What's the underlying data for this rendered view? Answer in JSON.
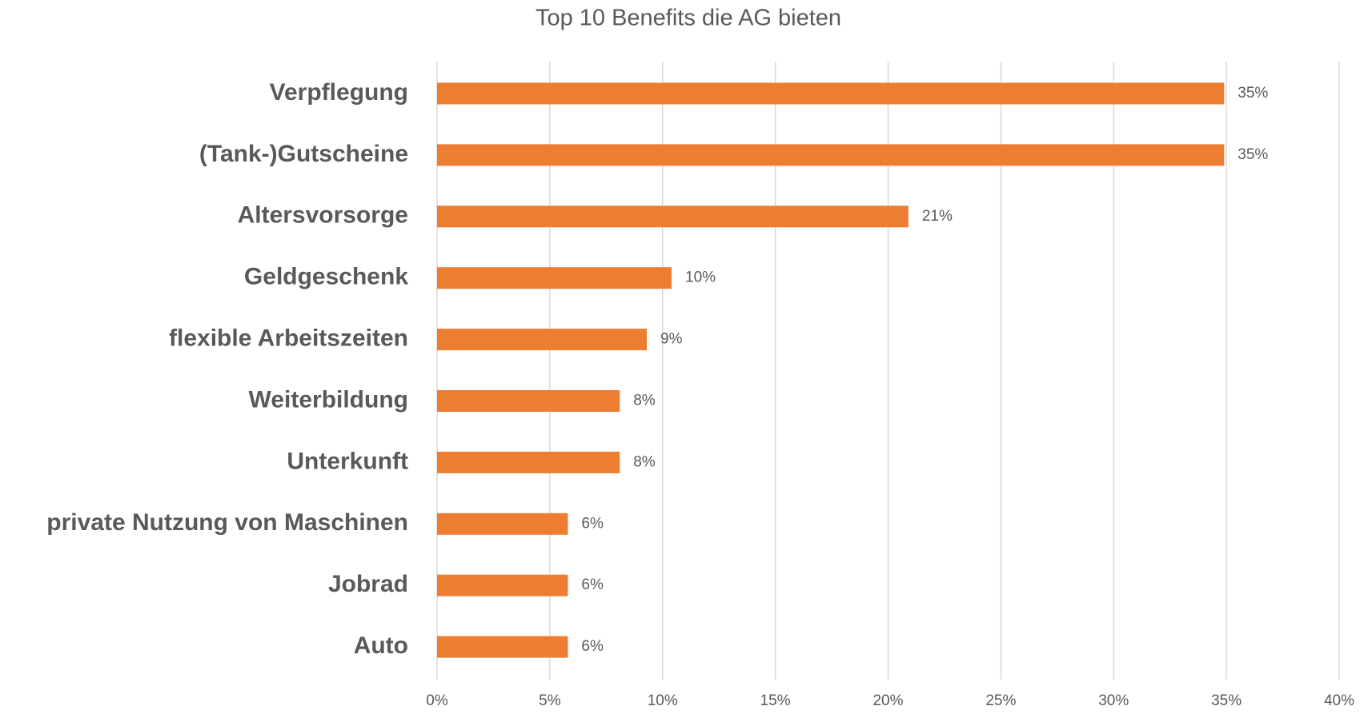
{
  "chart_data": {
    "type": "bar",
    "orientation": "horizontal",
    "title": "Top 10 Benefits die AG bieten",
    "categories": [
      "Verpflegung",
      "(Tank-)Gutscheine",
      "Altersvorsorge",
      "Geldgeschenk",
      "flexible Arbeitszeiten",
      "Weiterbildung",
      "Unterkunft",
      "private Nutzung von Maschinen",
      "Jobrad",
      "Auto"
    ],
    "values": [
      34.9,
      34.9,
      20.9,
      10.4,
      9.3,
      8.1,
      8.1,
      5.8,
      5.8,
      5.8
    ],
    "value_labels": [
      "35%",
      "35%",
      "21%",
      "10%",
      "9%",
      "8%",
      "8%",
      "6%",
      "6%",
      "6%"
    ],
    "color": "#ed7d31",
    "xlim": [
      0,
      40
    ],
    "xticks": [
      {
        "value": 0,
        "label": "0%"
      },
      {
        "value": 5,
        "label": "5%"
      },
      {
        "value": 10,
        "label": "10%"
      },
      {
        "value": 15,
        "label": "15%"
      },
      {
        "value": 20,
        "label": "20%"
      },
      {
        "value": 25,
        "label": "25%"
      },
      {
        "value": 30,
        "label": "30%"
      },
      {
        "value": 35,
        "label": "35%"
      },
      {
        "value": 40,
        "label": "40%"
      }
    ],
    "grid": true
  }
}
